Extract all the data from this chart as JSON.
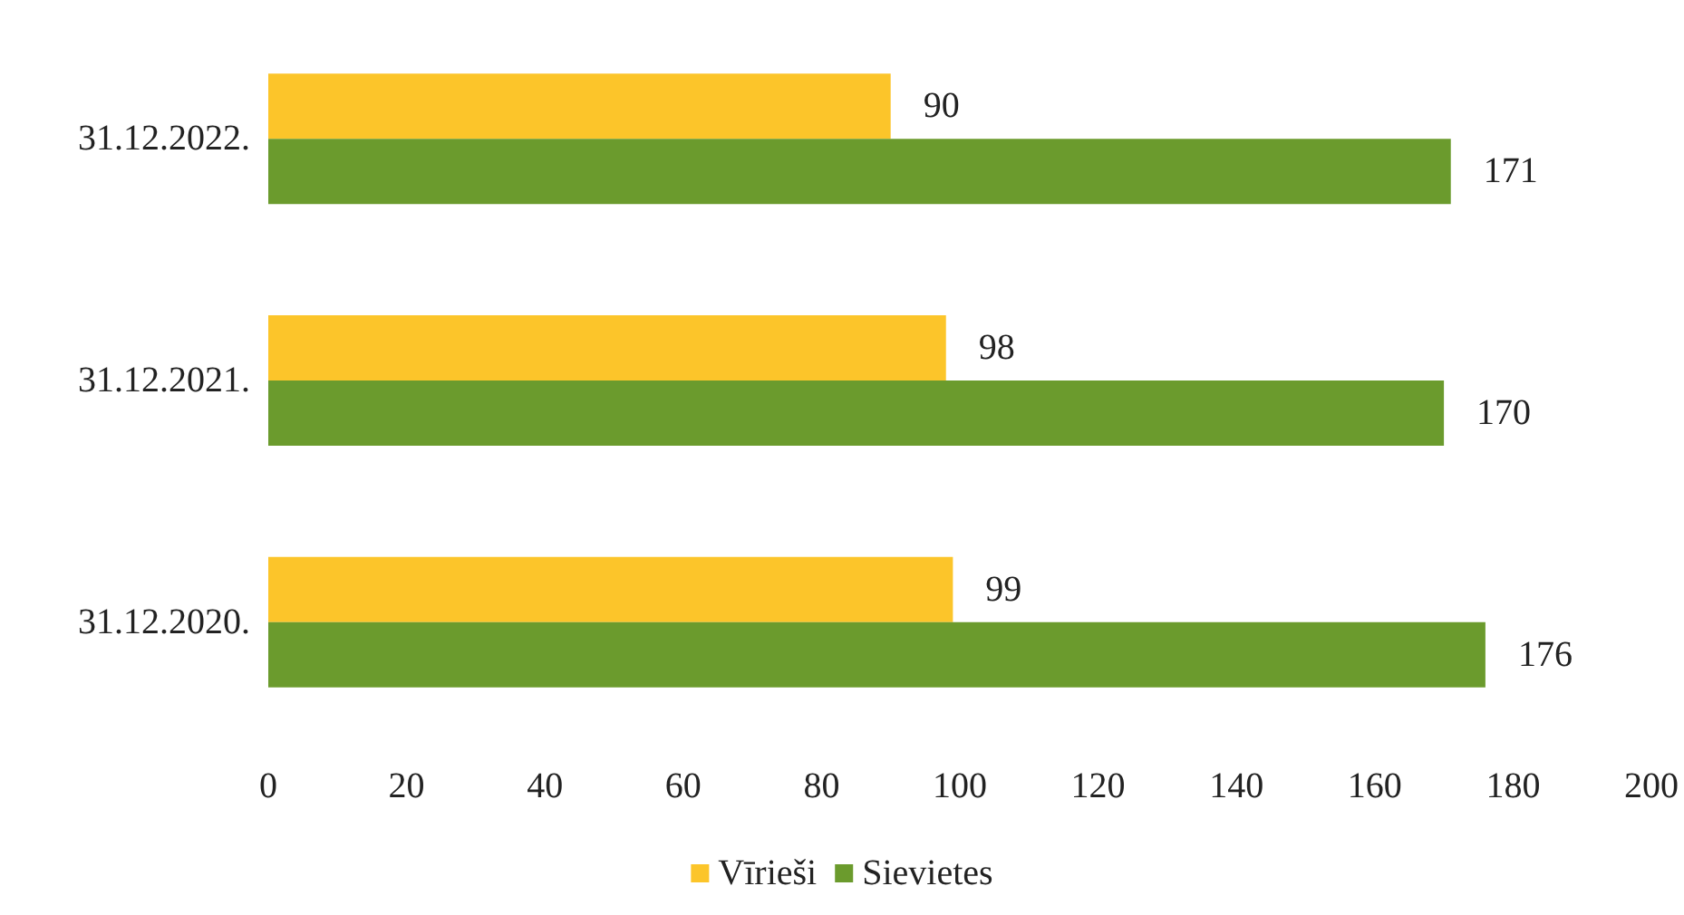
{
  "chart_data": {
    "type": "bar",
    "orientation": "horizontal",
    "categories": [
      "31.12.2022.",
      "31.12.2021.",
      "31.12.2020."
    ],
    "series": [
      {
        "name": "Vīrieši",
        "color": "#fcc52a",
        "values": [
          90,
          98,
          99
        ]
      },
      {
        "name": "Sievietes",
        "color": "#6b9b2d",
        "values": [
          171,
          170,
          176
        ]
      }
    ],
    "xlim": [
      0,
      200
    ],
    "xticks": [
      0,
      20,
      40,
      60,
      80,
      100,
      120,
      140,
      160,
      180,
      200
    ],
    "data_labels": true,
    "grid": false,
    "legend": "bottom"
  }
}
